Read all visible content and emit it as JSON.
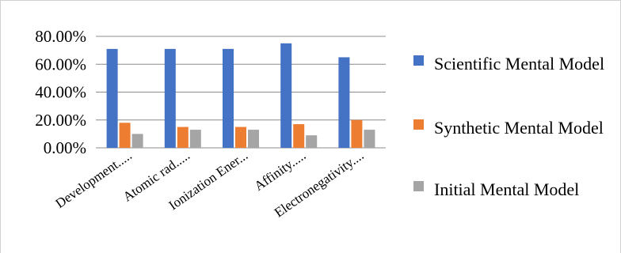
{
  "chart_data": {
    "type": "bar",
    "title": "",
    "xlabel": "",
    "ylabel": "",
    "ylim": [
      0,
      80
    ],
    "yticks": [
      "0.00%",
      "20.00%",
      "40.00%",
      "60.00%",
      "80.00%"
    ],
    "ytick_values": [
      0,
      20,
      40,
      60,
      80
    ],
    "grid": true,
    "legend_position": "right",
    "categories": [
      "Development.....",
      "Atomic rad.....",
      "Ionization Ener...",
      "Affinity.....",
      "Electronegativity...."
    ],
    "series": [
      {
        "name": "Scientific Mental Model",
        "color": "#4472C4",
        "values": [
          71,
          71,
          71,
          75,
          65
        ]
      },
      {
        "name": "Synthetic Mental Model",
        "color": "#ED7D31",
        "values": [
          18,
          15,
          15,
          17,
          20
        ]
      },
      {
        "name": "Initial Mental Model",
        "color": "#A5A5A5",
        "values": [
          10,
          13,
          13,
          9,
          13
        ]
      }
    ]
  }
}
